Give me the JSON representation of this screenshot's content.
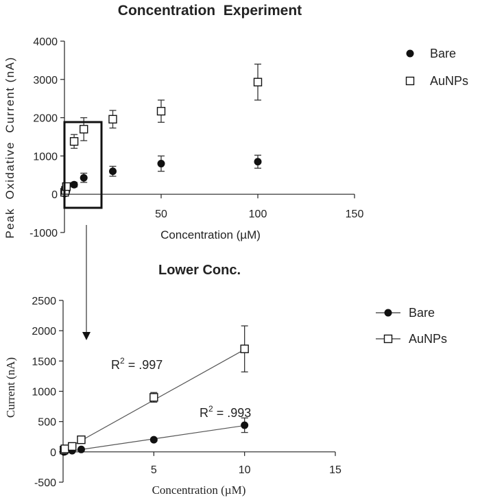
{
  "chart_data": [
    {
      "type": "scatter",
      "title": "Concentration  Experiment",
      "xlabel": "Concentration (µM)",
      "ylabel": "Peak  Oxidative  Current (nA)",
      "xlim": [
        0,
        150
      ],
      "ylim": [
        -1000,
        4000
      ],
      "xticks": [
        "0",
        "50",
        "100",
        "150"
      ],
      "yticks": [
        "-1000",
        "0",
        "1000",
        "2000",
        "3000",
        "4000"
      ],
      "legend": "right",
      "series": [
        {
          "name": "Bare",
          "marker": "filled-circle",
          "color": "#111111",
          "points": [
            {
              "x": 0.1,
              "y": 20,
              "err": 20
            },
            {
              "x": 0.5,
              "y": 40,
              "err": 20
            },
            {
              "x": 1,
              "y": 80,
              "err": 30
            },
            {
              "x": 5,
              "y": 250,
              "err": 60
            },
            {
              "x": 10,
              "y": 430,
              "err": 120
            },
            {
              "x": 25,
              "y": 600,
              "err": 130
            },
            {
              "x": 50,
              "y": 800,
              "err": 200
            },
            {
              "x": 100,
              "y": 850,
              "err": 170
            }
          ]
        },
        {
          "name": "AuNPs",
          "marker": "open-square",
          "color": "#111111",
          "points": [
            {
              "x": 0.1,
              "y": 50,
              "err": 20
            },
            {
              "x": 0.5,
              "y": 100,
              "err": 30
            },
            {
              "x": 1,
              "y": 200,
              "err": 40
            },
            {
              "x": 5,
              "y": 1380,
              "err": 180
            },
            {
              "x": 10,
              "y": 1700,
              "err": 300
            },
            {
              "x": 25,
              "y": 1960,
              "err": 230
            },
            {
              "x": 50,
              "y": 2170,
              "err": 290
            },
            {
              "x": 100,
              "y": 2930,
              "err": 470
            }
          ]
        }
      ],
      "annotation": "zoom box around 0–15 µM region with arrow to lower panel"
    },
    {
      "type": "scatter",
      "title": "Lower Conc.",
      "xlabel": "Concentration (µM)",
      "ylabel": "Current (nA)",
      "xlim": [
        0,
        15
      ],
      "ylim": [
        -500,
        2500
      ],
      "xticks": [
        "0",
        "5",
        "10",
        "15"
      ],
      "yticks": [
        "-500",
        "0",
        "500",
        "1000",
        "1500",
        "2000",
        "2500"
      ],
      "legend": "right",
      "series": [
        {
          "name": "Bare",
          "marker": "filled-circle",
          "color": "#111111",
          "points": [
            {
              "x": 0.05,
              "y": 0,
              "err": 10
            },
            {
              "x": 0.1,
              "y": 5,
              "err": 10
            },
            {
              "x": 0.5,
              "y": 20,
              "err": 10
            },
            {
              "x": 1,
              "y": 40,
              "err": 15
            },
            {
              "x": 5,
              "y": 200,
              "err": 25
            },
            {
              "x": 10,
              "y": 440,
              "err": 120
            }
          ],
          "fit": {
            "x": [
              0,
              10
            ],
            "y": [
              -5,
              435
            ]
          }
        },
        {
          "name": "AuNPs",
          "marker": "open-square",
          "color": "#111111",
          "points": [
            {
              "x": 0.05,
              "y": 30,
              "err": 10
            },
            {
              "x": 0.1,
              "y": 50,
              "err": 10
            },
            {
              "x": 0.5,
              "y": 90,
              "err": 20
            },
            {
              "x": 1,
              "y": 200,
              "err": 40
            },
            {
              "x": 5,
              "y": 900,
              "err": 80
            },
            {
              "x": 10,
              "y": 1700,
              "err": 380
            }
          ],
          "fit": {
            "x": [
              0,
              10
            ],
            "y": [
              20,
              1690
            ]
          }
        }
      ],
      "annotations": [
        {
          "text_base": "R",
          "sup": "2",
          "text_rest": " = .997"
        },
        {
          "text_base": "R",
          "sup": "2",
          "text_rest": " = .993"
        }
      ]
    }
  ]
}
